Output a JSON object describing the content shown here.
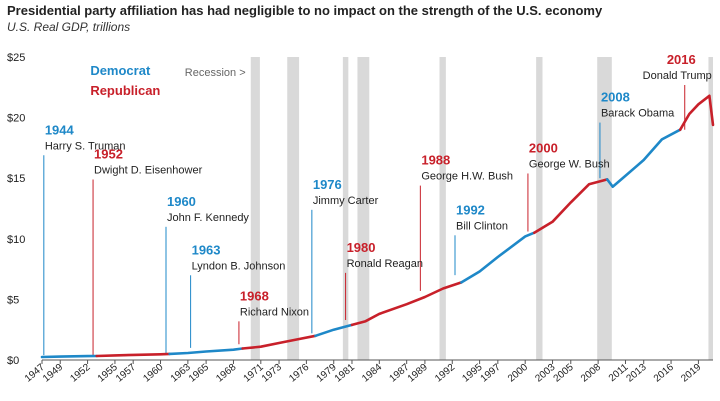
{
  "chart_data": {
    "type": "line",
    "title": "Presidential party affiliation has had negligible to no impact on the strength of the U.S. economy",
    "subtitle": "U.S. Real GDP, trillions",
    "xlabel": "",
    "ylabel": "",
    "xlim": [
      1947,
      2020.6
    ],
    "ylim": [
      0,
      25
    ],
    "yticks": [
      0,
      5,
      10,
      15,
      20,
      25
    ],
    "ytick_labels": [
      "$0",
      "$5",
      "$10",
      "$15",
      "$20",
      "$25"
    ],
    "xticks": [
      1947,
      1949,
      1952,
      1955,
      1957,
      1960,
      1963,
      1965,
      1968,
      1971,
      1973,
      1976,
      1979,
      1981,
      1984,
      1987,
      1989,
      1992,
      1995,
      1997,
      2000,
      2003,
      2005,
      2008,
      2011,
      2013,
      2016,
      2019
    ],
    "grid": false,
    "legend": [
      {
        "name": "Democrat",
        "color": "#1e88c8"
      },
      {
        "name": "Republican",
        "color": "#c8202a"
      }
    ],
    "legend_placement": "top-left",
    "recession_label": "Recession >",
    "recessions": [
      [
        1969.9,
        1970.9
      ],
      [
        1973.9,
        1975.2
      ],
      [
        1980.0,
        1980.6
      ],
      [
        1981.6,
        1982.9
      ],
      [
        1990.6,
        1991.3
      ],
      [
        2001.2,
        2001.9
      ],
      [
        2007.9,
        2009.5
      ],
      [
        2020.1,
        2020.6
      ]
    ],
    "series": [
      {
        "party": "Democrat",
        "x": [
          1947,
          1949,
          1952,
          1953
        ],
        "y": [
          0.25,
          0.28,
          0.32,
          0.33
        ]
      },
      {
        "party": "Republican",
        "x": [
          1953,
          1955,
          1957,
          1960,
          1961
        ],
        "y": [
          0.33,
          0.38,
          0.42,
          0.47,
          0.5
        ]
      },
      {
        "party": "Democrat",
        "x": [
          1961,
          1963,
          1965,
          1968,
          1969
        ],
        "y": [
          0.5,
          0.58,
          0.7,
          0.85,
          0.95
        ]
      },
      {
        "party": "Republican",
        "x": [
          1969,
          1971,
          1973,
          1975,
          1977
        ],
        "y": [
          0.95,
          1.1,
          1.4,
          1.7,
          2.0
        ]
      },
      {
        "party": "Democrat",
        "x": [
          1977,
          1979,
          1981
        ],
        "y": [
          2.0,
          2.5,
          2.9
        ]
      },
      {
        "party": "Republican",
        "x": [
          1981,
          1982.5,
          1984,
          1987,
          1989,
          1991,
          1993
        ],
        "y": [
          2.9,
          3.2,
          3.8,
          4.6,
          5.2,
          5.9,
          6.4
        ]
      },
      {
        "party": "Democrat",
        "x": [
          1993,
          1995,
          1997,
          2000,
          2001
        ],
        "y": [
          6.4,
          7.3,
          8.5,
          10.2,
          10.5
        ]
      },
      {
        "party": "Republican",
        "x": [
          2001,
          2003,
          2005,
          2007,
          2008.5,
          2009
        ],
        "y": [
          10.5,
          11.4,
          13.0,
          14.5,
          14.8,
          14.9
        ]
      },
      {
        "party": "Democrat",
        "x": [
          2009,
          2009.6,
          2011,
          2013,
          2015,
          2017
        ],
        "y": [
          14.9,
          14.3,
          15.2,
          16.5,
          18.2,
          19.0
        ]
      },
      {
        "party": "Republican",
        "x": [
          2017,
          2018,
          2019,
          2020.2,
          2020.6
        ],
        "y": [
          19.0,
          20.3,
          21.1,
          21.8,
          19.4
        ]
      }
    ],
    "annotations": [
      {
        "year": "1944",
        "name": "Harry S. Truman",
        "party": "Democrat",
        "x": 1947.2,
        "y": 0.4,
        "label_y": 19.2
      },
      {
        "year": "1952",
        "name": "Dwight D. Eisenhower",
        "party": "Republican",
        "x": 1952.6,
        "y": 0.4,
        "label_y": 17.2
      },
      {
        "year": "1960",
        "name": "John F. Kennedy",
        "party": "Democrat",
        "x": 1960.6,
        "y": 0.5,
        "label_y": 13.3
      },
      {
        "year": "1963",
        "name": "Lyndon B. Johnson",
        "party": "Democrat",
        "x": 1963.3,
        "y": 1.0,
        "label_y": 9.3
      },
      {
        "year": "1968",
        "name": "Richard Nixon",
        "party": "Republican",
        "x": 1968.6,
        "y": 1.3,
        "label_y": 5.5
      },
      {
        "year": "1976",
        "name": "Jimmy Carter",
        "party": "Democrat",
        "x": 1976.6,
        "y": 2.2,
        "label_y": 14.7
      },
      {
        "year": "1980",
        "name": "Ronald Reagan",
        "party": "Republican",
        "x": 1980.3,
        "y": 3.3,
        "label_y": 9.5
      },
      {
        "year": "1988",
        "name": "George H.W. Bush",
        "party": "Republican",
        "x": 1988.5,
        "y": 5.7,
        "label_y": 16.7
      },
      {
        "year": "1992",
        "name": "Bill Clinton",
        "party": "Democrat",
        "x": 1992.3,
        "y": 7.0,
        "label_y": 12.6
      },
      {
        "year": "2000",
        "name": "George W. Bush",
        "party": "Republican",
        "x": 2000.3,
        "y": 10.6,
        "label_y": 17.7
      },
      {
        "year": "2008",
        "name": "Barack Obama",
        "party": "Democrat",
        "x": 2008.2,
        "y": 15.0,
        "label_y": 21.9
      },
      {
        "year": "2016",
        "name": "Donald Trump",
        "party": "Republican",
        "x": 2017.5,
        "y": 19.0,
        "label_y": 25.0
      }
    ]
  }
}
